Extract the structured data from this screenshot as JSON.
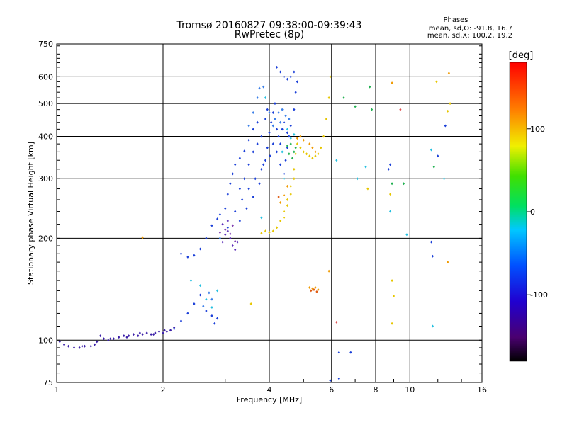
{
  "chart_data": {
    "type": "scatter",
    "title": "Tromsø 20160827 09:38:00-09:39:43",
    "subtitle": "RwPretec (8p)",
    "legend_title": "Phases",
    "legend_lines": [
      "mean, sd,O: -91.8, 16.7",
      "mean, sd,X: 100.2, 19.2"
    ],
    "xlabel": "Frequency [MHz]",
    "ylabel": "Stationary phase Virtual Height [km]",
    "x_scale": "log",
    "y_scale": "log",
    "xlim": [
      1,
      16
    ],
    "ylim": [
      75,
      750
    ],
    "x_ticks": [
      1,
      2,
      4,
      6,
      8,
      10,
      16
    ],
    "x_tick_labels": [
      "1",
      "2",
      "4",
      "6",
      "8",
      "10",
      "16"
    ],
    "y_ticks": [
      75,
      100,
      200,
      300,
      400,
      500,
      600,
      750
    ],
    "y_tick_labels": [
      "75",
      "100",
      "200",
      "300",
      "400",
      "500",
      "600",
      "750"
    ],
    "grid": true,
    "colorbar": {
      "label": "[deg]",
      "range": [
        -180,
        180
      ],
      "ticks": [
        100,
        0,
        -100
      ],
      "tick_labels": [
        "100",
        "0",
        "-100"
      ]
    },
    "series": [
      {
        "color": "#3b1fa8",
        "points": [
          [
            1.02,
            99
          ],
          [
            1.05,
            97
          ],
          [
            1.08,
            96
          ],
          [
            1.12,
            95
          ],
          [
            1.16,
            95
          ],
          [
            1.2,
            96
          ],
          [
            1.25,
            96
          ],
          [
            1.3,
            99
          ],
          [
            1.33,
            103
          ],
          [
            1.36,
            101
          ],
          [
            1.4,
            100
          ],
          [
            1.45,
            101
          ],
          [
            1.5,
            102
          ],
          [
            1.55,
            103
          ],
          [
            1.6,
            103
          ],
          [
            1.65,
            104
          ],
          [
            1.7,
            103
          ],
          [
            1.75,
            104
          ],
          [
            1.8,
            105
          ],
          [
            1.85,
            104
          ],
          [
            1.9,
            105
          ],
          [
            1.95,
            106
          ],
          [
            2.0,
            105
          ],
          [
            2.05,
            106
          ],
          [
            2.1,
            107
          ],
          [
            2.15,
            109
          ],
          [
            1.18,
            96
          ],
          [
            1.28,
            97
          ],
          [
            1.42,
            101
          ],
          [
            1.58,
            102
          ],
          [
            1.72,
            105
          ],
          [
            1.88,
            104
          ],
          [
            2.02,
            107
          ]
        ]
      },
      {
        "color": "#1a3fd8",
        "points": [
          [
            2.15,
            108
          ],
          [
            2.25,
            114
          ],
          [
            2.35,
            120
          ],
          [
            2.45,
            128
          ],
          [
            2.55,
            136
          ],
          [
            2.65,
            122
          ],
          [
            2.75,
            118
          ],
          [
            2.8,
            112
          ],
          [
            2.85,
            116
          ],
          [
            2.25,
            180
          ],
          [
            2.35,
            176
          ],
          [
            2.45,
            178
          ],
          [
            2.55,
            186
          ],
          [
            2.65,
            200
          ],
          [
            2.75,
            218
          ],
          [
            2.85,
            228
          ],
          [
            2.9,
            235
          ],
          [
            3.0,
            245
          ],
          [
            3.05,
            270
          ],
          [
            3.1,
            290
          ],
          [
            3.15,
            310
          ],
          [
            3.2,
            330
          ],
          [
            3.3,
            345
          ],
          [
            3.4,
            362
          ],
          [
            3.5,
            390
          ],
          [
            3.6,
            420
          ],
          [
            3.7,
            440
          ],
          [
            3.3,
            280
          ],
          [
            3.4,
            300
          ],
          [
            3.5,
            330
          ],
          [
            3.6,
            360
          ],
          [
            3.7,
            380
          ],
          [
            3.8,
            400
          ],
          [
            3.9,
            450
          ],
          [
            3.95,
            480
          ],
          [
            3.05,
            215
          ],
          [
            3.2,
            240
          ],
          [
            3.35,
            260
          ],
          [
            3.5,
            280
          ],
          [
            3.65,
            300
          ],
          [
            3.8,
            320
          ],
          [
            3.9,
            340
          ],
          [
            3.3,
            225
          ],
          [
            3.45,
            245
          ],
          [
            3.6,
            265
          ],
          [
            3.75,
            290
          ],
          [
            3.85,
            330
          ],
          [
            3.95,
            370
          ],
          [
            4.0,
            410
          ],
          [
            4.05,
            440
          ],
          [
            4.1,
            470
          ],
          [
            4.15,
            500
          ],
          [
            4.2,
            420
          ],
          [
            4.25,
            400
          ],
          [
            4.3,
            380
          ],
          [
            4.35,
            420
          ],
          [
            4.4,
            440
          ],
          [
            4.5,
            410
          ],
          [
            4.6,
            430
          ],
          [
            4.7,
            480
          ],
          [
            4.75,
            540
          ],
          [
            4.8,
            580
          ],
          [
            4.2,
            640
          ],
          [
            4.3,
            620
          ],
          [
            4.4,
            600
          ],
          [
            4.5,
            590
          ],
          [
            4.6,
            600
          ],
          [
            4.7,
            620
          ],
          [
            4.02,
            350
          ],
          [
            4.1,
            380
          ],
          [
            4.2,
            360
          ],
          [
            4.3,
            330
          ],
          [
            4.4,
            310
          ],
          [
            4.45,
            340
          ],
          [
            4.5,
            370
          ],
          [
            4.55,
            400
          ]
        ]
      },
      {
        "color": "#3a7fe8",
        "points": [
          [
            2.6,
            126
          ],
          [
            2.7,
            138
          ],
          [
            2.75,
            132
          ],
          [
            2.9,
            200
          ],
          [
            3.5,
            430
          ],
          [
            3.6,
            470
          ],
          [
            3.7,
            520
          ],
          [
            3.75,
            555
          ],
          [
            3.85,
            560
          ],
          [
            4.0,
            470
          ],
          [
            4.15,
            450
          ],
          [
            4.25,
            470
          ],
          [
            4.35,
            480
          ],
          [
            4.45,
            460
          ],
          [
            4.55,
            450
          ],
          [
            4.1,
            430
          ],
          [
            4.3,
            440
          ]
        ]
      },
      {
        "color": "#5a2ab8",
        "points": [
          [
            2.95,
            195
          ],
          [
            3.0,
            205
          ],
          [
            3.05,
            210
          ],
          [
            3.1,
            200
          ],
          [
            3.15,
            190
          ],
          [
            3.2,
            185
          ],
          [
            3.25,
            195
          ],
          [
            2.95,
            220
          ],
          [
            3.05,
            225
          ]
        ]
      },
      {
        "color": "#8040b0",
        "points": [
          [
            3.0,
            212
          ],
          [
            3.1,
            206
          ],
          [
            3.15,
            218
          ],
          [
            3.2,
            196
          ],
          [
            2.9,
            208
          ]
        ]
      },
      {
        "color": "#22c0e0",
        "points": [
          [
            2.4,
            150
          ],
          [
            2.55,
            145
          ],
          [
            2.65,
            132
          ],
          [
            2.75,
            125
          ],
          [
            2.85,
            140
          ],
          [
            3.8,
            230
          ],
          [
            3.9,
            520
          ],
          [
            4.35,
            360
          ],
          [
            4.4,
            300
          ],
          [
            4.5,
            420
          ],
          [
            4.6,
            395
          ],
          [
            4.7,
            405
          ]
        ]
      },
      {
        "color": "#20b050",
        "points": [
          [
            4.5,
            375
          ],
          [
            4.6,
            380
          ],
          [
            4.7,
            360
          ],
          [
            4.65,
            345
          ],
          [
            4.75,
            370
          ],
          [
            4.55,
            355
          ]
        ]
      },
      {
        "color": "#e6c600",
        "points": [
          [
            3.55,
            128
          ],
          [
            3.8,
            207
          ],
          [
            3.9,
            210
          ],
          [
            4.0,
            208
          ],
          [
            4.1,
            210
          ],
          [
            4.2,
            215
          ],
          [
            4.3,
            225
          ],
          [
            4.4,
            240
          ],
          [
            4.5,
            260
          ],
          [
            4.6,
            285
          ],
          [
            4.7,
            320
          ],
          [
            4.75,
            355
          ],
          [
            4.8,
            380
          ],
          [
            4.9,
            370
          ],
          [
            5.0,
            360
          ],
          [
            5.1,
            355
          ],
          [
            5.2,
            350
          ],
          [
            5.3,
            345
          ],
          [
            5.4,
            350
          ],
          [
            5.5,
            355
          ],
          [
            5.6,
            370
          ],
          [
            5.7,
            400
          ],
          [
            5.8,
            450
          ],
          [
            5.9,
            520
          ],
          [
            5.95,
            600
          ],
          [
            4.4,
            230
          ],
          [
            4.5,
            250
          ],
          [
            4.6,
            270
          ],
          [
            4.7,
            300
          ]
        ]
      },
      {
        "color": "#f09a00",
        "points": [
          [
            4.3,
            255
          ],
          [
            4.4,
            268
          ],
          [
            4.5,
            285
          ],
          [
            4.8,
            395
          ],
          [
            4.9,
            400
          ],
          [
            5.0,
            390
          ],
          [
            5.2,
            380
          ],
          [
            5.3,
            370
          ],
          [
            5.4,
            360
          ],
          [
            5.2,
            143
          ],
          [
            5.3,
            142
          ],
          [
            5.4,
            143
          ],
          [
            5.5,
            141
          ]
        ]
      },
      {
        "color": "#e05a10",
        "points": [
          [
            5.25,
            140
          ],
          [
            5.35,
            141
          ],
          [
            5.45,
            139
          ],
          [
            4.25,
            265
          ]
        ]
      },
      {
        "color": "#1a3fd8",
        "points": [
          [
            6.3,
            92
          ],
          [
            6.8,
            92
          ],
          [
            8.7,
            320
          ],
          [
            8.8,
            330
          ],
          [
            11.5,
            195
          ],
          [
            11.6,
            177
          ],
          [
            12.0,
            350
          ],
          [
            12.6,
            430
          ]
        ]
      },
      {
        "color": "#22c0e0",
        "points": [
          [
            6.2,
            340
          ],
          [
            7.1,
            300
          ],
          [
            7.5,
            325
          ],
          [
            8.8,
            240
          ],
          [
            9.8,
            205
          ],
          [
            11.5,
            365
          ],
          [
            11.6,
            110
          ],
          [
            12.5,
            300
          ]
        ]
      },
      {
        "color": "#20b050",
        "points": [
          [
            6.5,
            520
          ],
          [
            7.0,
            490
          ],
          [
            7.7,
            560
          ],
          [
            7.8,
            480
          ],
          [
            8.9,
            290
          ],
          [
            9.6,
            290
          ],
          [
            11.7,
            325
          ]
        ]
      },
      {
        "color": "#e6c600",
        "points": [
          [
            7.6,
            280
          ],
          [
            8.8,
            270
          ],
          [
            8.9,
            150
          ],
          [
            9.0,
            135
          ],
          [
            8.9,
            112
          ],
          [
            11.9,
            580
          ],
          [
            13.0,
            500
          ],
          [
            12.8,
            475
          ]
        ]
      },
      {
        "color": "#f09a00",
        "points": [
          [
            1.75,
            201
          ],
          [
            8.9,
            575
          ],
          [
            12.9,
            615
          ],
          [
            12.8,
            170
          ],
          [
            5.9,
            160
          ]
        ]
      },
      {
        "color": "#e05050",
        "points": [
          [
            6.2,
            113
          ],
          [
            9.4,
            480
          ]
        ]
      },
      {
        "color": "#1a3fd8",
        "points": [
          [
            6.3,
            77
          ],
          [
            5.95,
            76
          ]
        ]
      }
    ]
  }
}
